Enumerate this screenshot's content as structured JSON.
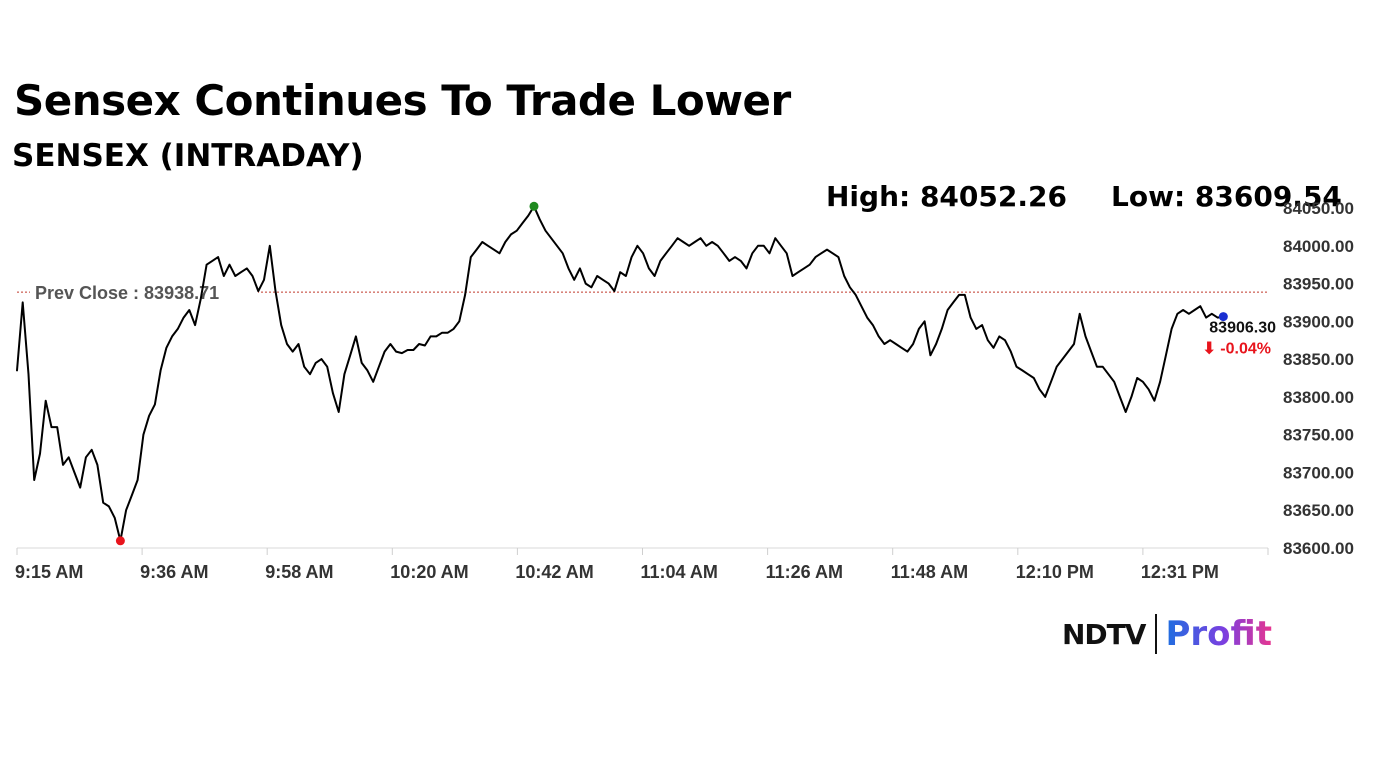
{
  "header": {
    "title": "Sensex Continues To Trade Lower",
    "subtitle": "SENSEX (INTRADAY)",
    "high_label": "High: 84052.26",
    "low_label": "Low: 83609.54"
  },
  "brand": {
    "name_left": "NDTV",
    "name_right": "Profit"
  },
  "colors": {
    "line": "#000000",
    "prev_close_line": "#c0392b",
    "high_marker": "#1f8a1f",
    "low_marker": "#e8141c",
    "last_marker": "#1a2fd1",
    "change_text": "#e8141c",
    "axis_text": "#333333"
  },
  "chart_data": {
    "type": "line",
    "title": "SENSEX (INTRADAY)",
    "xlabel": "",
    "ylabel": "",
    "ylim": [
      83600,
      84050
    ],
    "y_ticks": [
      83600,
      83650,
      83700,
      83750,
      83800,
      83850,
      83900,
      83950,
      84000,
      84050
    ],
    "y_tick_labels": [
      "83600.00",
      "83650.00",
      "83700.00",
      "83750.00",
      "83800.00",
      "83850.00",
      "83900.00",
      "83950.00",
      "84000.00",
      "84050.00"
    ],
    "x_ticks": [
      "9:15 AM",
      "9:36 AM",
      "9:58 AM",
      "10:20 AM",
      "10:42 AM",
      "11:04 AM",
      "11:26 AM",
      "11:48 AM",
      "12:10 PM",
      "12:31 PM"
    ],
    "prev_close": {
      "label": "Prev Close : 83938.71",
      "value": 83938.71
    },
    "high": {
      "time": "10:45 AM",
      "value": 84052.26
    },
    "low": {
      "time": "9:33 AM",
      "value": 83609.54
    },
    "last": {
      "time": "12:45 PM",
      "value": 83906.3,
      "value_label": "83906.30",
      "change_label": "⬇ -0.04%"
    },
    "grid": false,
    "series": [
      {
        "values": [
          [
            "9:15 AM",
            83835
          ],
          [
            "9:16 AM",
            83925
          ],
          [
            "9:17 AM",
            83830
          ],
          [
            "9:18 AM",
            83690
          ],
          [
            "9:19 AM",
            83725
          ],
          [
            "9:20 AM",
            83795
          ],
          [
            "9:21 AM",
            83760
          ],
          [
            "9:22 AM",
            83760
          ],
          [
            "9:23 AM",
            83710
          ],
          [
            "9:24 AM",
            83720
          ],
          [
            "9:25 AM",
            83700
          ],
          [
            "9:26 AM",
            83680
          ],
          [
            "9:27 AM",
            83720
          ],
          [
            "9:28 AM",
            83730
          ],
          [
            "9:29 AM",
            83710
          ],
          [
            "9:30 AM",
            83660
          ],
          [
            "9:31 AM",
            83655
          ],
          [
            "9:32 AM",
            83640
          ],
          [
            "9:33 AM",
            83609.54
          ],
          [
            "9:34 AM",
            83650
          ],
          [
            "9:35 AM",
            83670
          ],
          [
            "9:36 AM",
            83690
          ],
          [
            "9:37 AM",
            83750
          ],
          [
            "9:38 AM",
            83775
          ],
          [
            "9:39 AM",
            83790
          ],
          [
            "9:40 AM",
            83835
          ],
          [
            "9:41 AM",
            83865
          ],
          [
            "9:42 AM",
            83880
          ],
          [
            "9:43 AM",
            83890
          ],
          [
            "9:44 AM",
            83905
          ],
          [
            "9:45 AM",
            83915
          ],
          [
            "9:46 AM",
            83895
          ],
          [
            "9:47 AM",
            83930
          ],
          [
            "9:48 AM",
            83975
          ],
          [
            "9:49 AM",
            83980
          ],
          [
            "9:50 AM",
            83985
          ],
          [
            "9:51 AM",
            83960
          ],
          [
            "9:52 AM",
            83975
          ],
          [
            "9:53 AM",
            83960
          ],
          [
            "9:54 AM",
            83965
          ],
          [
            "9:55 AM",
            83970
          ],
          [
            "9:56 AM",
            83960
          ],
          [
            "9:57 AM",
            83940
          ],
          [
            "9:58 AM",
            83955
          ],
          [
            "9:59 AM",
            84000
          ],
          [
            "10:00 AM",
            83940
          ],
          [
            "10:01 AM",
            83895
          ],
          [
            "10:02 AM",
            83870
          ],
          [
            "10:03 AM",
            83860
          ],
          [
            "10:04 AM",
            83870
          ],
          [
            "10:05 AM",
            83840
          ],
          [
            "10:06 AM",
            83830
          ],
          [
            "10:07 AM",
            83845
          ],
          [
            "10:08 AM",
            83850
          ],
          [
            "10:09 AM",
            83840
          ],
          [
            "10:10 AM",
            83805
          ],
          [
            "10:11 AM",
            83780
          ],
          [
            "10:12 AM",
            83830
          ],
          [
            "10:13 AM",
            83855
          ],
          [
            "10:14 AM",
            83880
          ],
          [
            "10:15 AM",
            83845
          ],
          [
            "10:16 AM",
            83835
          ],
          [
            "10:17 AM",
            83820
          ],
          [
            "10:18 AM",
            83840
          ],
          [
            "10:19 AM",
            83860
          ],
          [
            "10:20 AM",
            83870
          ],
          [
            "10:21 AM",
            83860
          ],
          [
            "10:22 AM",
            83858
          ],
          [
            "10:23 AM",
            83862
          ],
          [
            "10:24 AM",
            83862
          ],
          [
            "10:25 AM",
            83870
          ],
          [
            "10:26 AM",
            83868
          ],
          [
            "10:27 AM",
            83880
          ],
          [
            "10:28 AM",
            83880
          ],
          [
            "10:29 AM",
            83885
          ],
          [
            "10:30 AM",
            83885
          ],
          [
            "10:31 AM",
            83890
          ],
          [
            "10:32 AM",
            83900
          ],
          [
            "10:33 AM",
            83935
          ],
          [
            "10:34 AM",
            83985
          ],
          [
            "10:35 AM",
            83995
          ],
          [
            "10:36 AM",
            84005
          ],
          [
            "10:37 AM",
            84000
          ],
          [
            "10:38 AM",
            83995
          ],
          [
            "10:39 AM",
            83990
          ],
          [
            "10:40 AM",
            84005
          ],
          [
            "10:41 AM",
            84015
          ],
          [
            "10:42 AM",
            84020
          ],
          [
            "10:43 AM",
            84030
          ],
          [
            "10:44 AM",
            84040
          ],
          [
            "10:45 AM",
            84052.26
          ],
          [
            "10:46 AM",
            84035
          ],
          [
            "10:47 AM",
            84020
          ],
          [
            "10:48 AM",
            84010
          ],
          [
            "10:49 AM",
            84000
          ],
          [
            "10:50 AM",
            83990
          ],
          [
            "10:51 AM",
            83970
          ],
          [
            "10:52 AM",
            83955
          ],
          [
            "10:53 AM",
            83970
          ],
          [
            "10:54 AM",
            83950
          ],
          [
            "10:55 AM",
            83945
          ],
          [
            "10:56 AM",
            83960
          ],
          [
            "10:57 AM",
            83955
          ],
          [
            "10:58 AM",
            83950
          ],
          [
            "10:59 AM",
            83940
          ],
          [
            "11:00 AM",
            83965
          ],
          [
            "11:01 AM",
            83960
          ],
          [
            "11:02 AM",
            83985
          ],
          [
            "11:03 AM",
            84000
          ],
          [
            "11:04 AM",
            83990
          ],
          [
            "11:05 AM",
            83970
          ],
          [
            "11:06 AM",
            83960
          ],
          [
            "11:07 AM",
            83980
          ],
          [
            "11:08 AM",
            83990
          ],
          [
            "11:09 AM",
            84000
          ],
          [
            "11:10 AM",
            84010
          ],
          [
            "11:11 AM",
            84005
          ],
          [
            "11:12 AM",
            84000
          ],
          [
            "11:13 AM",
            84005
          ],
          [
            "11:14 AM",
            84010
          ],
          [
            "11:15 AM",
            84000
          ],
          [
            "11:16 AM",
            84005
          ],
          [
            "11:17 AM",
            84000
          ],
          [
            "11:18 AM",
            83990
          ],
          [
            "11:19 AM",
            83980
          ],
          [
            "11:20 AM",
            83985
          ],
          [
            "11:21 AM",
            83980
          ],
          [
            "11:22 AM",
            83970
          ],
          [
            "11:23 AM",
            83990
          ],
          [
            "11:24 AM",
            84000
          ],
          [
            "11:25 AM",
            84000
          ],
          [
            "11:26 AM",
            83990
          ],
          [
            "11:27 AM",
            84010
          ],
          [
            "11:28 AM",
            84000
          ],
          [
            "11:29 AM",
            83990
          ],
          [
            "11:30 AM",
            83960
          ],
          [
            "11:31 AM",
            83965
          ],
          [
            "11:32 AM",
            83970
          ],
          [
            "11:33 AM",
            83975
          ],
          [
            "11:34 AM",
            83985
          ],
          [
            "11:35 AM",
            83990
          ],
          [
            "11:36 AM",
            83995
          ],
          [
            "11:37 AM",
            83990
          ],
          [
            "11:38 AM",
            83985
          ],
          [
            "11:39 AM",
            83960
          ],
          [
            "11:40 AM",
            83945
          ],
          [
            "11:41 AM",
            83935
          ],
          [
            "11:42 AM",
            83920
          ],
          [
            "11:43 AM",
            83905
          ],
          [
            "11:44 AM",
            83895
          ],
          [
            "11:45 AM",
            83880
          ],
          [
            "11:46 AM",
            83870
          ],
          [
            "11:47 AM",
            83875
          ],
          [
            "11:48 AM",
            83870
          ],
          [
            "11:49 AM",
            83865
          ],
          [
            "11:50 AM",
            83860
          ],
          [
            "11:51 AM",
            83870
          ],
          [
            "11:52 AM",
            83890
          ],
          [
            "11:53 AM",
            83900
          ],
          [
            "11:54 AM",
            83855
          ],
          [
            "11:55 AM",
            83870
          ],
          [
            "11:56 AM",
            83890
          ],
          [
            "11:57 AM",
            83915
          ],
          [
            "11:58 AM",
            83925
          ],
          [
            "11:59 AM",
            83935
          ],
          [
            "12:00 PM",
            83935
          ],
          [
            "12:01 PM",
            83905
          ],
          [
            "12:02 PM",
            83890
          ],
          [
            "12:03 PM",
            83895
          ],
          [
            "12:04 PM",
            83875
          ],
          [
            "12:05 PM",
            83865
          ],
          [
            "12:06 PM",
            83880
          ],
          [
            "12:07 PM",
            83875
          ],
          [
            "12:08 PM",
            83860
          ],
          [
            "12:09 PM",
            83840
          ],
          [
            "12:10 PM",
            83835
          ],
          [
            "12:11 PM",
            83830
          ],
          [
            "12:12 PM",
            83825
          ],
          [
            "12:13 PM",
            83810
          ],
          [
            "12:14 PM",
            83800
          ],
          [
            "12:15 PM",
            83820
          ],
          [
            "12:16 PM",
            83840
          ],
          [
            "12:17 PM",
            83850
          ],
          [
            "12:18 PM",
            83860
          ],
          [
            "12:19 PM",
            83870
          ],
          [
            "12:20 PM",
            83910
          ],
          [
            "12:21 PM",
            83880
          ],
          [
            "12:22 PM",
            83860
          ],
          [
            "12:23 PM",
            83840
          ],
          [
            "12:24 PM",
            83840
          ],
          [
            "12:25 PM",
            83830
          ],
          [
            "12:26 PM",
            83820
          ],
          [
            "12:27 PM",
            83800
          ],
          [
            "12:28 PM",
            83780
          ],
          [
            "12:29 PM",
            83800
          ],
          [
            "12:30 PM",
            83825
          ],
          [
            "12:31 PM",
            83820
          ],
          [
            "12:32 PM",
            83810
          ],
          [
            "12:33 PM",
            83795
          ],
          [
            "12:34 PM",
            83820
          ],
          [
            "12:35 PM",
            83855
          ],
          [
            "12:36 PM",
            83890
          ],
          [
            "12:37 PM",
            83910
          ],
          [
            "12:38 PM",
            83915
          ],
          [
            "12:39 PM",
            83910
          ],
          [
            "12:40 PM",
            83915
          ],
          [
            "12:41 PM",
            83920
          ],
          [
            "12:42 PM",
            83905
          ],
          [
            "12:43 PM",
            83910
          ],
          [
            "12:44 PM",
            83905
          ],
          [
            "12:45 PM",
            83906.3
          ]
        ]
      }
    ]
  }
}
